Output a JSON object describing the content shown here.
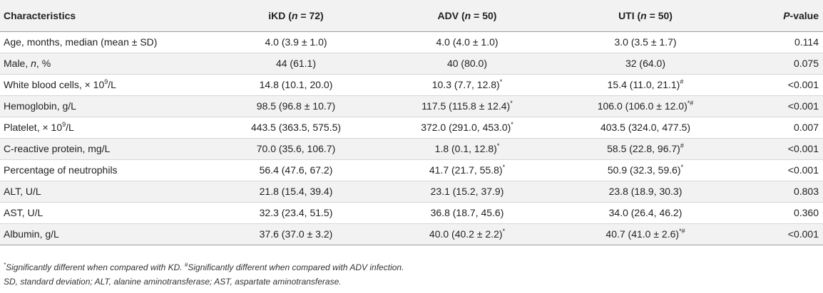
{
  "columns": [
    {
      "main": "Characteristics"
    },
    {
      "prefix": "iKD (",
      "var": "n",
      "suffix": " = 72)"
    },
    {
      "prefix": "ADV (",
      "var": "n",
      "suffix": " = 50)"
    },
    {
      "prefix": "UTI (",
      "var": "n",
      "suffix": " = 50)"
    },
    {
      "var": "P",
      "suffix": "-value"
    }
  ],
  "rows": [
    {
      "label": {
        "a": "Age, months, median (mean ± SD)"
      },
      "ikd": {
        "v": "4.0 (3.9 ± 1.0)"
      },
      "adv": {
        "v": "4.0 (4.0 ± 1.0)"
      },
      "uti": {
        "v": "3.0 (3.5 ± 1.7)"
      },
      "p": "0.114"
    },
    {
      "label": {
        "a": "Male, ",
        "i": "n",
        "b": ", %"
      },
      "ikd": {
        "v": "44 (61.1)"
      },
      "adv": {
        "v": "40 (80.0)"
      },
      "uti": {
        "v": "32 (64.0)"
      },
      "p": "0.075"
    },
    {
      "label": {
        "a": "White blood cells, × 10",
        "sup": "9",
        "b": "/L"
      },
      "ikd": {
        "v": "14.8 (10.1, 20.0)"
      },
      "adv": {
        "v": "10.3 (7.7, 12.8)",
        "sup": "*"
      },
      "uti": {
        "v": "15.4 (11.0, 21.1)",
        "sup": "#"
      },
      "p": "<0.001"
    },
    {
      "label": {
        "a": "Hemoglobin, g/L"
      },
      "ikd": {
        "v": "98.5 (96.8 ± 10.7)"
      },
      "adv": {
        "v": "117.5 (115.8 ± 12.4)",
        "sup": "*"
      },
      "uti": {
        "v": "106.0 (106.0 ± 12.0)",
        "sup": "*#"
      },
      "p": "<0.001"
    },
    {
      "label": {
        "a": "Platelet, × 10",
        "sup": "9",
        "b": "/L"
      },
      "ikd": {
        "v": "443.5 (363.5, 575.5)"
      },
      "adv": {
        "v": "372.0 (291.0, 453.0)",
        "sup": "*"
      },
      "uti": {
        "v": "403.5 (324.0, 477.5)"
      },
      "p": "0.007"
    },
    {
      "label": {
        "a": "C-reactive protein, mg/L"
      },
      "ikd": {
        "v": "70.0 (35.6, 106.7)"
      },
      "adv": {
        "v": "1.8 (0.1, 12.8)",
        "sup": "*"
      },
      "uti": {
        "v": "58.5 (22.8, 96.7)",
        "sup": "#"
      },
      "p": "<0.001"
    },
    {
      "label": {
        "a": "Percentage of neutrophils"
      },
      "ikd": {
        "v": "56.4 (47.6, 67.2)"
      },
      "adv": {
        "v": "41.7 (21.7, 55.8)",
        "sup": "*"
      },
      "uti": {
        "v": "50.9 (32.3, 59.6)",
        "sup": "*"
      },
      "p": "<0.001"
    },
    {
      "label": {
        "a": "ALT, U/L"
      },
      "ikd": {
        "v": "21.8 (15.4, 39.4)"
      },
      "adv": {
        "v": "23.1 (15.2, 37.9)"
      },
      "uti": {
        "v": "23.8 (18.9, 30.3)"
      },
      "p": "0.803"
    },
    {
      "label": {
        "a": "AST, U/L"
      },
      "ikd": {
        "v": "32.3 (23.4, 51.5)"
      },
      "adv": {
        "v": "36.8 (18.7, 45.6)"
      },
      "uti": {
        "v": "34.0 (26.4, 46.2)"
      },
      "p": "0.360"
    },
    {
      "label": {
        "a": "Albumin, g/L"
      },
      "ikd": {
        "v": "37.6 (37.0 ± 3.2)"
      },
      "adv": {
        "v": "40.0 (40.2 ± 2.2)",
        "sup": "*"
      },
      "uti": {
        "v": "40.7 (41.0 ± 2.6)",
        "sup": "*#"
      },
      "p": "<0.001"
    }
  ],
  "footnotes": {
    "line1": {
      "sup1": "*",
      "t1": "Significantly different when compared with KD. ",
      "sup2": "#",
      "t2": "Significantly different when compared with ADV infection."
    },
    "line2": "SD, standard deviation; ALT, alanine aminotransferase; AST, aspartate aminotransferase."
  }
}
